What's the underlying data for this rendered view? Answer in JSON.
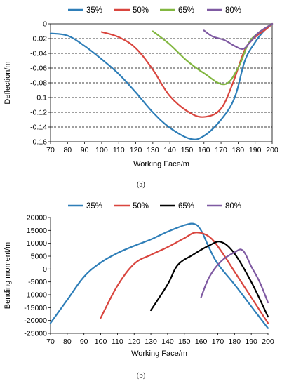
{
  "chart_data": [
    {
      "type": "line",
      "caption": "(a)",
      "xlabel": "Working Face/m",
      "ylabel": "Deflection/m",
      "xlim": [
        70,
        200
      ],
      "ylim": [
        -0.16,
        0
      ],
      "xticks": [
        70,
        80,
        90,
        100,
        110,
        120,
        130,
        140,
        150,
        160,
        170,
        180,
        190,
        200
      ],
      "yticks": [
        0,
        -0.02,
        -0.04,
        -0.06,
        -0.08,
        -0.1,
        -0.12,
        -0.14,
        -0.16
      ],
      "ytick_labels": [
        "0",
        "-0.02",
        "-0.04",
        "-0.06",
        "-0.08",
        "-0.1",
        "-0.12",
        "-0.14",
        "-0.16"
      ],
      "grid": "horizontal-dashed",
      "legend_position": "top",
      "series": [
        {
          "name": "35%",
          "color": "#2e7eb8",
          "x": [
            70,
            80,
            90,
            100,
            110,
            120,
            130,
            140,
            152,
            160,
            170,
            178,
            184,
            190,
            195,
            200
          ],
          "y": [
            -0.013,
            -0.016,
            -0.03,
            -0.048,
            -0.068,
            -0.093,
            -0.12,
            -0.141,
            -0.156,
            -0.152,
            -0.13,
            -0.1,
            -0.05,
            -0.025,
            -0.01,
            0
          ]
        },
        {
          "name": "50%",
          "color": "#d9453e",
          "x": [
            100,
            110,
            120,
            130,
            140,
            152,
            161,
            170,
            177,
            184,
            190,
            196,
            200
          ],
          "y": [
            -0.011,
            -0.018,
            -0.033,
            -0.062,
            -0.098,
            -0.121,
            -0.126,
            -0.115,
            -0.08,
            -0.035,
            -0.018,
            -0.008,
            0
          ]
        },
        {
          "name": "65%",
          "color": "#82b740",
          "x": [
            130,
            140,
            150,
            160,
            172,
            180,
            186,
            192,
            200
          ],
          "y": [
            -0.01,
            -0.028,
            -0.05,
            -0.067,
            -0.082,
            -0.06,
            -0.027,
            -0.012,
            0
          ]
        },
        {
          "name": "80%",
          "color": "#7f5aa2",
          "x": [
            160,
            165,
            172,
            178,
            183,
            187,
            192,
            200
          ],
          "y": [
            -0.009,
            -0.017,
            -0.022,
            -0.03,
            -0.034,
            -0.025,
            -0.012,
            0
          ]
        }
      ]
    },
    {
      "type": "line",
      "caption": "(b)",
      "xlabel": "Working Face/m",
      "ylabel": "Bending moment/m",
      "xlim": [
        70,
        200
      ],
      "ylim": [
        -25000,
        20000
      ],
      "xticks": [
        70,
        80,
        90,
        100,
        110,
        120,
        130,
        140,
        150,
        160,
        170,
        180,
        190,
        200
      ],
      "yticks": [
        20000,
        15000,
        10000,
        5000,
        0,
        -5000,
        -10000,
        -15000,
        -20000,
        -25000
      ],
      "ytick_labels": [
        "20000",
        "15000",
        "10000",
        "5000",
        "0",
        "-5000",
        "-10000",
        "-15000",
        "-20000",
        "-25000"
      ],
      "grid": "none",
      "legend_position": "top",
      "series": [
        {
          "name": "35%",
          "color": "#2e7eb8",
          "x": [
            70,
            80,
            90,
            100,
            110,
            120,
            130,
            140,
            150,
            156,
            160,
            165,
            170,
            180,
            190,
            200
          ],
          "y": [
            -21000,
            -12000,
            -3000,
            2500,
            6200,
            9000,
            11500,
            14500,
            17000,
            17500,
            15000,
            8000,
            2000,
            -6000,
            -14500,
            -23000
          ]
        },
        {
          "name": "50%",
          "color": "#d9453e",
          "x": [
            100,
            110,
            120,
            130,
            140,
            150,
            157,
            165,
            172,
            180,
            190,
            200
          ],
          "y": [
            -19000,
            -6500,
            2000,
            5500,
            8500,
            12000,
            14200,
            12500,
            7000,
            -1000,
            -11000,
            -21000
          ]
        },
        {
          "name": "65%",
          "color": "#000000",
          "x": [
            130,
            140,
            146,
            155,
            165,
            172,
            180,
            190,
            200
          ],
          "y": [
            -16000,
            -6000,
            1500,
            5500,
            9200,
            10500,
            6000,
            -5000,
            -18500
          ]
        },
        {
          "name": "80%",
          "color": "#7f5aa2",
          "x": [
            160,
            165,
            172,
            180,
            185,
            190,
            195,
            200
          ],
          "y": [
            -11000,
            -3000,
            3000,
            6500,
            7200,
            1000,
            -5000,
            -13000
          ]
        }
      ]
    }
  ]
}
